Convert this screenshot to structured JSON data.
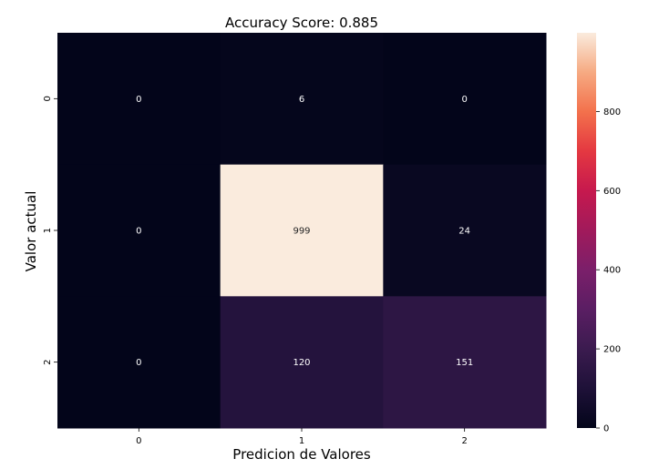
{
  "chart_data": {
    "type": "heatmap",
    "title": "Accuracy Score: 0.885",
    "xlabel": "Predicion de Valores",
    "ylabel": "Valor actual",
    "x_categories": [
      "0",
      "1",
      "2"
    ],
    "y_categories": [
      "0",
      "1",
      "2"
    ],
    "values": [
      [
        0,
        6,
        0
      ],
      [
        0,
        999,
        24
      ],
      [
        0,
        120,
        151
      ]
    ],
    "colorbar": {
      "min": 0,
      "max": 999,
      "ticks": [
        0,
        200,
        400,
        600,
        800
      ],
      "tick_labels": [
        "0",
        "200",
        "400",
        "600",
        "800"
      ],
      "colormap": "rocket"
    }
  }
}
